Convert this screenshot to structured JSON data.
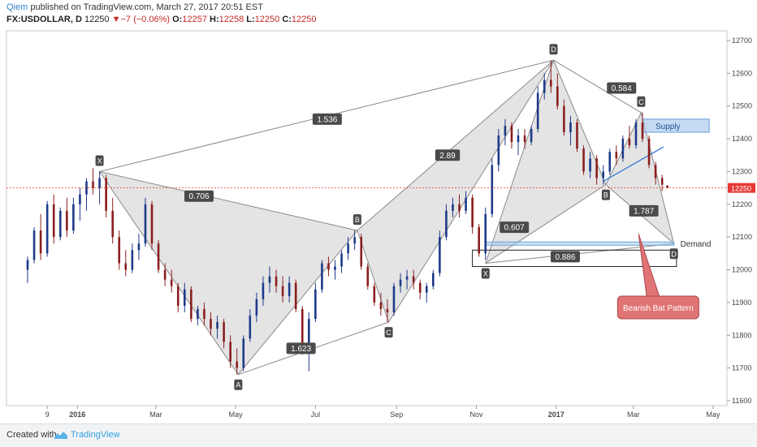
{
  "header": {
    "author": "Qiem",
    "published_text": " published on TradingView.com, March 27, 2017 20:51 EST",
    "symbol": "FX:USDOLLAR, D",
    "last": "12250",
    "change": "−7 (−0.06%)",
    "o_label": "O:",
    "o_value": "12257",
    "h_label": "H:",
    "h_value": "12258",
    "l_label": "L:",
    "l_value": "12250",
    "c_label": "C:",
    "c_value": "12250"
  },
  "footer": {
    "created_with": "Created with",
    "brand": "TradingView"
  },
  "colors": {
    "bull": "#1e3a8a",
    "bear": "#8b1e1e",
    "pattern_fill": "#d9d9d9",
    "pattern_line": "#8a8a8a",
    "price_line": "#e53935",
    "supply": "#9cc3ea",
    "demand_line": "#6fa6d9",
    "callout": "#e07474",
    "trend": "#2f6fd0"
  },
  "chart_data": {
    "type": "candlestick",
    "y_ticks": [
      "12700",
      "12600",
      "12500",
      "12400",
      "12300",
      "12200",
      "12100",
      "12000",
      "11900",
      "11800",
      "11700",
      "11600"
    ],
    "ylim": [
      11570,
      12730
    ],
    "x_ticks": [
      "9",
      "2016",
      "Mar",
      "May",
      "Jul",
      "Sep",
      "Nov",
      "2017",
      "Mar",
      "May"
    ],
    "last_price": 12250,
    "pattern1_points": [
      {
        "label": "X",
        "x": "2016-01-18",
        "y": 12300
      },
      {
        "label": "A",
        "x": "2016-05-03",
        "y": 11680
      },
      {
        "label": "B",
        "x": "2016-08-02",
        "y": 12120
      },
      {
        "label": "C",
        "x": "2016-08-26",
        "y": 11840
      },
      {
        "label": "D",
        "x": "2016-12-30",
        "y": 12640
      }
    ],
    "pattern1_ratios": [
      {
        "label": "0.706",
        "x": "2016-04-03",
        "y": 12225
      },
      {
        "label": "1.536",
        "x": "2016-07-10",
        "y": 12460
      },
      {
        "label": "1.623",
        "x": "2016-06-20",
        "y": 11760
      },
      {
        "label": "2.89",
        "x": "2016-10-10",
        "y": 12350
      }
    ],
    "pattern2_points": [
      {
        "label": "X",
        "x": "2016-11-08",
        "y": 12020
      },
      {
        "label": "B",
        "x": "2017-02-08",
        "y": 12260
      },
      {
        "label": "C",
        "x": "2017-03-07",
        "y": 12480
      },
      {
        "label": "D",
        "x": "2017-04-01",
        "y": 12080
      }
    ],
    "pattern2_ratios": [
      {
        "label": "0.584",
        "x": "2017-02-20",
        "y": 12555
      },
      {
        "label": "0.607",
        "x": "2016-11-30",
        "y": 12130
      },
      {
        "label": "0.886",
        "x": "2017-01-08",
        "y": 12040
      },
      {
        "label": "1.787",
        "x": "2017-03-09",
        "y": 12180
      }
    ],
    "zones": {
      "supply": {
        "label": "Supply",
        "x_from": "2017-03-08",
        "x_to": "2017-04-28",
        "y_from": 12420,
        "y_to": 12460
      },
      "demand": {
        "label": "Demand",
        "x_from": "2016-11-08",
        "x_to": "2017-04-01",
        "y_from": 12075,
        "y_to": 12085
      }
    },
    "annotation": {
      "text": "Bearish Bat Pattern",
      "x": "2017-03-20",
      "y": 11880
    },
    "candles": [
      {
        "d": "2015-11-24",
        "o": 12000,
        "h": 12040,
        "l": 11960,
        "c": 12030
      },
      {
        "d": "2015-11-29",
        "o": 12030,
        "h": 12130,
        "l": 12020,
        "c": 12120
      },
      {
        "d": "2015-12-04",
        "o": 12120,
        "h": 12170,
        "l": 12030,
        "c": 12050
      },
      {
        "d": "2015-12-09",
        "o": 12050,
        "h": 12210,
        "l": 12040,
        "c": 12200
      },
      {
        "d": "2015-12-14",
        "o": 12200,
        "h": 12230,
        "l": 12080,
        "c": 12100
      },
      {
        "d": "2015-12-19",
        "o": 12100,
        "h": 12190,
        "l": 12090,
        "c": 12180
      },
      {
        "d": "2015-12-24",
        "o": 12180,
        "h": 12220,
        "l": 12100,
        "c": 12120
      },
      {
        "d": "2015-12-29",
        "o": 12120,
        "h": 12220,
        "l": 12110,
        "c": 12200
      },
      {
        "d": "2016-01-03",
        "o": 12200,
        "h": 12250,
        "l": 12150,
        "c": 12230
      },
      {
        "d": "2016-01-08",
        "o": 12230,
        "h": 12280,
        "l": 12180,
        "c": 12270
      },
      {
        "d": "2016-01-13",
        "o": 12270,
        "h": 12310,
        "l": 12230,
        "c": 12250
      },
      {
        "d": "2016-01-18",
        "o": 12250,
        "h": 12300,
        "l": 12200,
        "c": 12280
      },
      {
        "d": "2016-01-23",
        "o": 12280,
        "h": 12290,
        "l": 12160,
        "c": 12180
      },
      {
        "d": "2016-01-28",
        "o": 12180,
        "h": 12220,
        "l": 12080,
        "c": 12100
      },
      {
        "d": "2016-02-02",
        "o": 12100,
        "h": 12120,
        "l": 12000,
        "c": 12020
      },
      {
        "d": "2016-02-07",
        "o": 12020,
        "h": 12060,
        "l": 11980,
        "c": 12000
      },
      {
        "d": "2016-02-12",
        "o": 12000,
        "h": 12080,
        "l": 11990,
        "c": 12060
      },
      {
        "d": "2016-02-17",
        "o": 12060,
        "h": 12110,
        "l": 12030,
        "c": 12080
      },
      {
        "d": "2016-02-22",
        "o": 12080,
        "h": 12220,
        "l": 12070,
        "c": 12200
      },
      {
        "d": "2016-02-27",
        "o": 12200,
        "h": 12210,
        "l": 12060,
        "c": 12080
      },
      {
        "d": "2016-03-03",
        "o": 12080,
        "h": 12090,
        "l": 11990,
        "c": 12000
      },
      {
        "d": "2016-03-08",
        "o": 12000,
        "h": 12020,
        "l": 11950,
        "c": 11970
      },
      {
        "d": "2016-03-13",
        "o": 11970,
        "h": 12000,
        "l": 11930,
        "c": 11950
      },
      {
        "d": "2016-03-18",
        "o": 11950,
        "h": 11960,
        "l": 11870,
        "c": 11890
      },
      {
        "d": "2016-03-23",
        "o": 11890,
        "h": 11960,
        "l": 11870,
        "c": 11940
      },
      {
        "d": "2016-03-28",
        "o": 11940,
        "h": 11950,
        "l": 11840,
        "c": 11850
      },
      {
        "d": "2016-04-02",
        "o": 11850,
        "h": 11890,
        "l": 11830,
        "c": 11880
      },
      {
        "d": "2016-04-07",
        "o": 11880,
        "h": 11900,
        "l": 11830,
        "c": 11850
      },
      {
        "d": "2016-04-12",
        "o": 11850,
        "h": 11870,
        "l": 11800,
        "c": 11820
      },
      {
        "d": "2016-04-17",
        "o": 11820,
        "h": 11860,
        "l": 11790,
        "c": 11840
      },
      {
        "d": "2016-04-22",
        "o": 11840,
        "h": 11850,
        "l": 11760,
        "c": 11780
      },
      {
        "d": "2016-04-27",
        "o": 11780,
        "h": 11800,
        "l": 11700,
        "c": 11720
      },
      {
        "d": "2016-05-02",
        "o": 11720,
        "h": 11760,
        "l": 11680,
        "c": 11700
      },
      {
        "d": "2016-05-07",
        "o": 11700,
        "h": 11800,
        "l": 11690,
        "c": 11790
      },
      {
        "d": "2016-05-12",
        "o": 11790,
        "h": 11880,
        "l": 11780,
        "c": 11860
      },
      {
        "d": "2016-05-17",
        "o": 11860,
        "h": 11930,
        "l": 11840,
        "c": 11910
      },
      {
        "d": "2016-05-22",
        "o": 11910,
        "h": 11980,
        "l": 11890,
        "c": 11960
      },
      {
        "d": "2016-05-27",
        "o": 11960,
        "h": 12010,
        "l": 11930,
        "c": 11980
      },
      {
        "d": "2016-06-01",
        "o": 11980,
        "h": 12000,
        "l": 11930,
        "c": 11950
      },
      {
        "d": "2016-06-06",
        "o": 11950,
        "h": 11980,
        "l": 11900,
        "c": 11920
      },
      {
        "d": "2016-06-11",
        "o": 11920,
        "h": 11980,
        "l": 11900,
        "c": 11960
      },
      {
        "d": "2016-06-16",
        "o": 11960,
        "h": 11970,
        "l": 11870,
        "c": 11880
      },
      {
        "d": "2016-06-21",
        "o": 11880,
        "h": 11890,
        "l": 11740,
        "c": 11760
      },
      {
        "d": "2016-06-26",
        "o": 11760,
        "h": 11870,
        "l": 11690,
        "c": 11850
      },
      {
        "d": "2016-07-01",
        "o": 11850,
        "h": 11960,
        "l": 11840,
        "c": 11940
      },
      {
        "d": "2016-07-06",
        "o": 11940,
        "h": 12030,
        "l": 11930,
        "c": 12020
      },
      {
        "d": "2016-07-11",
        "o": 12020,
        "h": 12040,
        "l": 11980,
        "c": 12000
      },
      {
        "d": "2016-07-16",
        "o": 12000,
        "h": 12030,
        "l": 11970,
        "c": 12010
      },
      {
        "d": "2016-07-21",
        "o": 12010,
        "h": 12060,
        "l": 11990,
        "c": 12050
      },
      {
        "d": "2016-07-26",
        "o": 12050,
        "h": 12100,
        "l": 12030,
        "c": 12080
      },
      {
        "d": "2016-07-31",
        "o": 12080,
        "h": 12120,
        "l": 12060,
        "c": 12100
      },
      {
        "d": "2016-08-05",
        "o": 12100,
        "h": 12110,
        "l": 12000,
        "c": 12010
      },
      {
        "d": "2016-08-10",
        "o": 12010,
        "h": 12020,
        "l": 11940,
        "c": 11950
      },
      {
        "d": "2016-08-15",
        "o": 11950,
        "h": 11960,
        "l": 11890,
        "c": 11900
      },
      {
        "d": "2016-08-20",
        "o": 11900,
        "h": 11930,
        "l": 11860,
        "c": 11880
      },
      {
        "d": "2016-08-25",
        "o": 11880,
        "h": 11910,
        "l": 11840,
        "c": 11870
      },
      {
        "d": "2016-08-30",
        "o": 11870,
        "h": 11960,
        "l": 11860,
        "c": 11950
      },
      {
        "d": "2016-09-04",
        "o": 11950,
        "h": 11990,
        "l": 11930,
        "c": 11970
      },
      {
        "d": "2016-09-09",
        "o": 11970,
        "h": 12000,
        "l": 11940,
        "c": 11980
      },
      {
        "d": "2016-09-14",
        "o": 11980,
        "h": 12000,
        "l": 11940,
        "c": 11960
      },
      {
        "d": "2016-09-19",
        "o": 11960,
        "h": 11970,
        "l": 11910,
        "c": 11930
      },
      {
        "d": "2016-09-24",
        "o": 11930,
        "h": 11960,
        "l": 11900,
        "c": 11950
      },
      {
        "d": "2016-09-29",
        "o": 11950,
        "h": 12000,
        "l": 11940,
        "c": 11990
      },
      {
        "d": "2016-10-04",
        "o": 11990,
        "h": 12120,
        "l": 11980,
        "c": 12100
      },
      {
        "d": "2016-10-09",
        "o": 12100,
        "h": 12200,
        "l": 12090,
        "c": 12180
      },
      {
        "d": "2016-10-14",
        "o": 12180,
        "h": 12220,
        "l": 12160,
        "c": 12200
      },
      {
        "d": "2016-10-19",
        "o": 12200,
        "h": 12230,
        "l": 12160,
        "c": 12180
      },
      {
        "d": "2016-10-24",
        "o": 12180,
        "h": 12240,
        "l": 12170,
        "c": 12220
      },
      {
        "d": "2016-10-29",
        "o": 12220,
        "h": 12230,
        "l": 12110,
        "c": 12130
      },
      {
        "d": "2016-11-03",
        "o": 12130,
        "h": 12140,
        "l": 12040,
        "c": 12050
      },
      {
        "d": "2016-11-08",
        "o": 12050,
        "h": 12190,
        "l": 12030,
        "c": 12170
      },
      {
        "d": "2016-11-13",
        "o": 12170,
        "h": 12340,
        "l": 12160,
        "c": 12320
      },
      {
        "d": "2016-11-18",
        "o": 12320,
        "h": 12430,
        "l": 12300,
        "c": 12410
      },
      {
        "d": "2016-11-23",
        "o": 12410,
        "h": 12460,
        "l": 12380,
        "c": 12440
      },
      {
        "d": "2016-11-28",
        "o": 12440,
        "h": 12450,
        "l": 12370,
        "c": 12390
      },
      {
        "d": "2016-12-03",
        "o": 12390,
        "h": 12430,
        "l": 12350,
        "c": 12410
      },
      {
        "d": "2016-12-08",
        "o": 12410,
        "h": 12430,
        "l": 12370,
        "c": 12390
      },
      {
        "d": "2016-12-13",
        "o": 12390,
        "h": 12440,
        "l": 12380,
        "c": 12430
      },
      {
        "d": "2016-12-18",
        "o": 12430,
        "h": 12560,
        "l": 12420,
        "c": 12540
      },
      {
        "d": "2016-12-23",
        "o": 12540,
        "h": 12600,
        "l": 12520,
        "c": 12580
      },
      {
        "d": "2016-12-28",
        "o": 12580,
        "h": 12640,
        "l": 12540,
        "c": 12560
      },
      {
        "d": "2017-01-02",
        "o": 12560,
        "h": 12600,
        "l": 12490,
        "c": 12500
      },
      {
        "d": "2017-01-07",
        "o": 12500,
        "h": 12520,
        "l": 12410,
        "c": 12420
      },
      {
        "d": "2017-01-12",
        "o": 12420,
        "h": 12470,
        "l": 12380,
        "c": 12450
      },
      {
        "d": "2017-01-17",
        "o": 12450,
        "h": 12460,
        "l": 12360,
        "c": 12370
      },
      {
        "d": "2017-01-22",
        "o": 12370,
        "h": 12380,
        "l": 12290,
        "c": 12300
      },
      {
        "d": "2017-01-27",
        "o": 12300,
        "h": 12360,
        "l": 12280,
        "c": 12340
      },
      {
        "d": "2017-02-01",
        "o": 12340,
        "h": 12350,
        "l": 12260,
        "c": 12280
      },
      {
        "d": "2017-02-06",
        "o": 12280,
        "h": 12320,
        "l": 12260,
        "c": 12300
      },
      {
        "d": "2017-02-11",
        "o": 12300,
        "h": 12370,
        "l": 12290,
        "c": 12360
      },
      {
        "d": "2017-02-16",
        "o": 12360,
        "h": 12380,
        "l": 12320,
        "c": 12340
      },
      {
        "d": "2017-02-21",
        "o": 12340,
        "h": 12410,
        "l": 12330,
        "c": 12400
      },
      {
        "d": "2017-02-26",
        "o": 12400,
        "h": 12440,
        "l": 12370,
        "c": 12380
      },
      {
        "d": "2017-03-03",
        "o": 12380,
        "h": 12460,
        "l": 12370,
        "c": 12450
      },
      {
        "d": "2017-03-08",
        "o": 12450,
        "h": 12480,
        "l": 12390,
        "c": 12400
      },
      {
        "d": "2017-03-13",
        "o": 12400,
        "h": 12410,
        "l": 12310,
        "c": 12320
      },
      {
        "d": "2017-03-18",
        "o": 12320,
        "h": 12330,
        "l": 12260,
        "c": 12280
      },
      {
        "d": "2017-03-23",
        "o": 12280,
        "h": 12290,
        "l": 12240,
        "c": 12260
      },
      {
        "d": "2017-03-27",
        "o": 12257,
        "h": 12258,
        "l": 12250,
        "c": 12250
      }
    ]
  }
}
